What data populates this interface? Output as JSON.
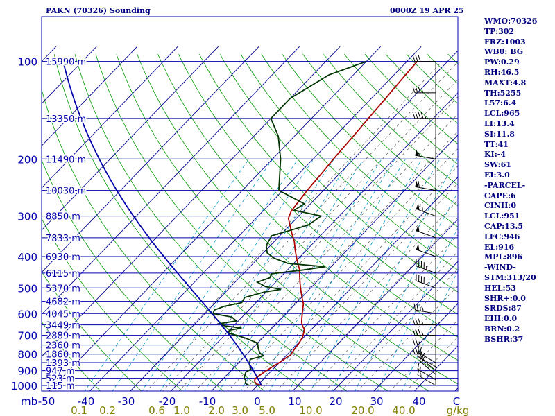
{
  "header": {
    "station": "PAKN (70326) Sounding",
    "time": "0000Z 19 APR 25"
  },
  "indices": [
    "WMO:70326",
    "TP:302",
    "FRZ:1003",
    "WB0: BG",
    "PW:0.29",
    "RH:46.5",
    "MAXT:4.8",
    "TH:5255",
    "L57:6.4",
    "LCL:965",
    "LI:13.4",
    "SI:11.8",
    "TT:41",
    "KI:-4",
    "SW:61",
    "EI:3.0",
    "-PARCEL-",
    "CAPE:6",
    "CINH:0",
    "LCL:951",
    "CAP:13.5",
    "LFC:946",
    "EL:916",
    "MPL:896",
    "-WIND-",
    "STM:313/20",
    "HEL:53",
    "SHR+:0.0",
    "SRDS:87",
    "EHI:0.0",
    "BRN:0.2",
    "BSHR:37"
  ],
  "colors": {
    "isobar": "#0000aa",
    "isotherm": "#00008f",
    "dry_adiabat": "#009900",
    "mixing_ratio": "#0099cc",
    "moist_adiabat": "#555555",
    "temperature": "#003300",
    "dewpoint": "#aa0000",
    "parcel": "#0000aa",
    "text": "#00007f",
    "axis": "#7f7f00"
  },
  "chart_data": {
    "type": "skew-t",
    "title": "PAKN (70326) Sounding",
    "xlabel": "",
    "ylabel": "mb",
    "temperature_ticks": [
      "-50",
      "-40",
      "-30",
      "-20",
      "-10",
      "0",
      "10",
      "20",
      "30",
      "40",
      "C"
    ],
    "mixing_ratio_ticks": [
      "0.1",
      "0.2",
      "0.6",
      "1.0",
      "2.0",
      "3.0",
      "5.0",
      "10.0",
      "20.0",
      "40.0",
      "g/kg"
    ],
    "pressure_levels": [
      {
        "p": 100,
        "label": "100",
        "height": "15990 m"
      },
      {
        "p": 150,
        "label": "",
        "height": "13350 m"
      },
      {
        "p": 200,
        "label": "200",
        "height": "11490 m"
      },
      {
        "p": 250,
        "label": "",
        "height": "10030 m"
      },
      {
        "p": 300,
        "label": "300",
        "height": "8850 m"
      },
      {
        "p": 350,
        "label": "",
        "height": "7833 m"
      },
      {
        "p": 400,
        "label": "400",
        "height": "6930 m"
      },
      {
        "p": 450,
        "label": "",
        "height": "6115 m"
      },
      {
        "p": 500,
        "label": "500",
        "height": "5370 m"
      },
      {
        "p": 550,
        "label": "",
        "height": "4682 m"
      },
      {
        "p": 600,
        "label": "600",
        "height": "4045 m"
      },
      {
        "p": 650,
        "label": "",
        "height": "3449 m"
      },
      {
        "p": 700,
        "label": "700",
        "height": "2889 m"
      },
      {
        "p": 750,
        "label": "",
        "height": "2360 m"
      },
      {
        "p": 800,
        "label": "800",
        "height": "1860 m"
      },
      {
        "p": 850,
        "label": "",
        "height": "1393 m"
      },
      {
        "p": 900,
        "label": "900",
        "height": "947 m"
      },
      {
        "p": 950,
        "label": "",
        "height": "523 m"
      },
      {
        "p": 1000,
        "label": "1000",
        "height": "115 m"
      }
    ],
    "sounding_temperature": [
      {
        "p": 1000,
        "t": 1.0
      },
      {
        "p": 990,
        "t": -0.5
      },
      {
        "p": 975,
        "t": -1.5
      },
      {
        "p": 960,
        "t": -2.0
      },
      {
        "p": 946,
        "t": -2.1
      },
      {
        "p": 930,
        "t": -1.8
      },
      {
        "p": 915,
        "t": -1.6
      },
      {
        "p": 896,
        "t": -1.2
      },
      {
        "p": 880,
        "t": -0.8
      },
      {
        "p": 860,
        "t": -0.3
      },
      {
        "p": 840,
        "t": 0.2
      },
      {
        "p": 815,
        "t": 0.6
      },
      {
        "p": 805,
        "t": 1.0
      },
      {
        "p": 795,
        "t": 0.8
      },
      {
        "p": 770,
        "t": 0.5
      },
      {
        "p": 740,
        "t": 0.2
      },
      {
        "p": 710,
        "t": -0.3
      },
      {
        "p": 690,
        "t": -1.0
      },
      {
        "p": 670,
        "t": -1.8
      },
      {
        "p": 655,
        "t": -3.0
      },
      {
        "p": 640,
        "t": -4.0
      },
      {
        "p": 620,
        "t": -5.0
      },
      {
        "p": 600,
        "t": -6.0
      },
      {
        "p": 580,
        "t": -7.0
      },
      {
        "p": 560,
        "t": -8.0
      },
      {
        "p": 540,
        "t": -9.5
      },
      {
        "p": 520,
        "t": -11.0
      },
      {
        "p": 500,
        "t": -12.5
      },
      {
        "p": 480,
        "t": -14.0
      },
      {
        "p": 460,
        "t": -15.5
      },
      {
        "p": 440,
        "t": -17.0
      },
      {
        "p": 420,
        "t": -19.0
      },
      {
        "p": 400,
        "t": -21.0
      },
      {
        "p": 380,
        "t": -23.0
      },
      {
        "p": 360,
        "t": -25.0
      },
      {
        "p": 340,
        "t": -27.5
      },
      {
        "p": 320,
        "t": -30.0
      },
      {
        "p": 305,
        "t": -32.0
      },
      {
        "p": 290,
        "t": -33.0
      },
      {
        "p": 270,
        "t": -33.5
      },
      {
        "p": 250,
        "t": -34.0
      },
      {
        "p": 220,
        "t": -34.5
      },
      {
        "p": 200,
        "t": -35.0
      },
      {
        "p": 170,
        "t": -35.5
      },
      {
        "p": 150,
        "t": -36.0
      },
      {
        "p": 130,
        "t": -36.5
      },
      {
        "p": 115,
        "t": -37.0
      },
      {
        "p": 100,
        "t": -37.5
      }
    ],
    "sounding_dewpoint": [
      {
        "p": 1000,
        "td": -2.0
      },
      {
        "p": 985,
        "td": -3.5
      },
      {
        "p": 965,
        "td": -4.0
      },
      {
        "p": 950,
        "td": -5.0
      },
      {
        "p": 930,
        "td": -5.5
      },
      {
        "p": 910,
        "td": -6.0
      },
      {
        "p": 890,
        "td": -5.5
      },
      {
        "p": 860,
        "td": -7.0
      },
      {
        "p": 830,
        "td": -8.0
      },
      {
        "p": 810,
        "td": -5.5
      },
      {
        "p": 795,
        "td": -7.0
      },
      {
        "p": 770,
        "td": -8.5
      },
      {
        "p": 740,
        "td": -10.0
      },
      {
        "p": 715,
        "td": -14.0
      },
      {
        "p": 700,
        "td": -17.0
      },
      {
        "p": 690,
        "td": -19.5
      },
      {
        "p": 675,
        "td": -20.0
      },
      {
        "p": 665,
        "td": -17.5
      },
      {
        "p": 655,
        "td": -22.0
      },
      {
        "p": 645,
        "td": -24.0
      },
      {
        "p": 632,
        "td": -20.5
      },
      {
        "p": 615,
        "td": -22.5
      },
      {
        "p": 600,
        "td": -28.0
      },
      {
        "p": 585,
        "td": -28.5
      },
      {
        "p": 570,
        "td": -27.0
      },
      {
        "p": 555,
        "td": -23.5
      },
      {
        "p": 535,
        "td": -24.0
      },
      {
        "p": 515,
        "td": -20.5
      },
      {
        "p": 505,
        "td": -17.0
      },
      {
        "p": 495,
        "td": -21.5
      },
      {
        "p": 480,
        "td": -24.5
      },
      {
        "p": 465,
        "td": -22.5
      },
      {
        "p": 452,
        "td": -23.0
      },
      {
        "p": 440,
        "td": -16.0
      },
      {
        "p": 430,
        "td": -11.5
      },
      {
        "p": 420,
        "td": -21.5
      },
      {
        "p": 405,
        "td": -26.0
      },
      {
        "p": 390,
        "td": -29.0
      },
      {
        "p": 370,
        "td": -31.0
      },
      {
        "p": 345,
        "td": -32.0
      },
      {
        "p": 320,
        "td": -25.5
      },
      {
        "p": 300,
        "td": -24.5
      },
      {
        "p": 288,
        "td": -32.5
      },
      {
        "p": 275,
        "td": -31.5
      },
      {
        "p": 250,
        "td": -41.0
      },
      {
        "p": 200,
        "td": -48.0
      },
      {
        "p": 170,
        "td": -54.0
      },
      {
        "p": 150,
        "td": -60.0
      },
      {
        "p": 130,
        "td": -60.0
      },
      {
        "p": 110,
        "td": -56.0
      },
      {
        "p": 100,
        "td": -50.0
      }
    ],
    "wind_barbs": [
      {
        "p": 1000,
        "dir": 300,
        "spd": 15
      },
      {
        "p": 960,
        "dir": 300,
        "spd": 15
      },
      {
        "p": 925,
        "dir": 310,
        "spd": 20
      },
      {
        "p": 900,
        "dir": 310,
        "spd": 20
      },
      {
        "p": 875,
        "dir": 300,
        "spd": 20
      },
      {
        "p": 850,
        "dir": 300,
        "spd": 20
      },
      {
        "p": 800,
        "dir": 270,
        "spd": 25
      },
      {
        "p": 750,
        "dir": 270,
        "spd": 25
      },
      {
        "p": 700,
        "dir": 270,
        "spd": 35
      },
      {
        "p": 650,
        "dir": 270,
        "spd": 35
      },
      {
        "p": 600,
        "dir": 280,
        "spd": 35
      },
      {
        "p": 500,
        "dir": 290,
        "spd": 40
      },
      {
        "p": 450,
        "dir": 290,
        "spd": 45
      },
      {
        "p": 400,
        "dir": 290,
        "spd": 50
      },
      {
        "p": 350,
        "dir": 290,
        "spd": 50
      },
      {
        "p": 300,
        "dir": 290,
        "spd": 65
      },
      {
        "p": 250,
        "dir": 280,
        "spd": 60
      },
      {
        "p": 200,
        "dir": 280,
        "spd": 55
      },
      {
        "p": 150,
        "dir": 270,
        "spd": 45
      },
      {
        "p": 125,
        "dir": 270,
        "spd": 35
      },
      {
        "p": 100,
        "dir": 270,
        "spd": 30
      }
    ]
  }
}
